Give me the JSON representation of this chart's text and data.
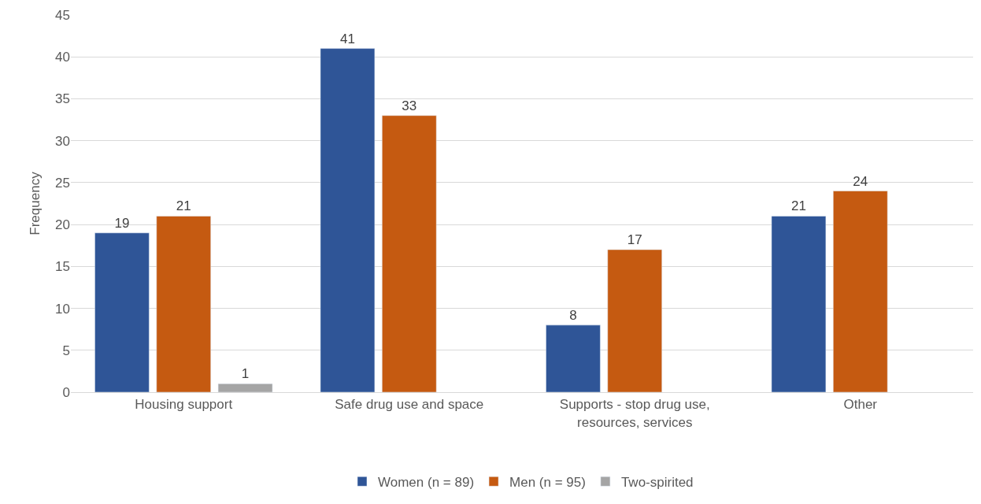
{
  "chart_data": {
    "type": "bar",
    "ylabel": "Frequency",
    "categories": [
      "Housing support",
      "Safe drug use and space",
      "Supports - stop drug use, resources, services",
      "Other"
    ],
    "series": [
      {
        "name": "Women (n = 89)",
        "color": "#2f5597",
        "values": [
          19,
          41,
          8,
          21
        ]
      },
      {
        "name": "Men (n = 95)",
        "color": "#c55a11",
        "values": [
          21,
          33,
          17,
          24
        ]
      },
      {
        "name": "Two-spirited",
        "color": "#a5a5a5",
        "values": [
          1,
          null,
          null,
          null
        ]
      }
    ],
    "ylim": [
      0,
      45
    ],
    "yticks": [
      0,
      5,
      10,
      15,
      20,
      25,
      30,
      35,
      40,
      45
    ],
    "grid": "y",
    "legend": "bottom",
    "data_labels": true
  }
}
